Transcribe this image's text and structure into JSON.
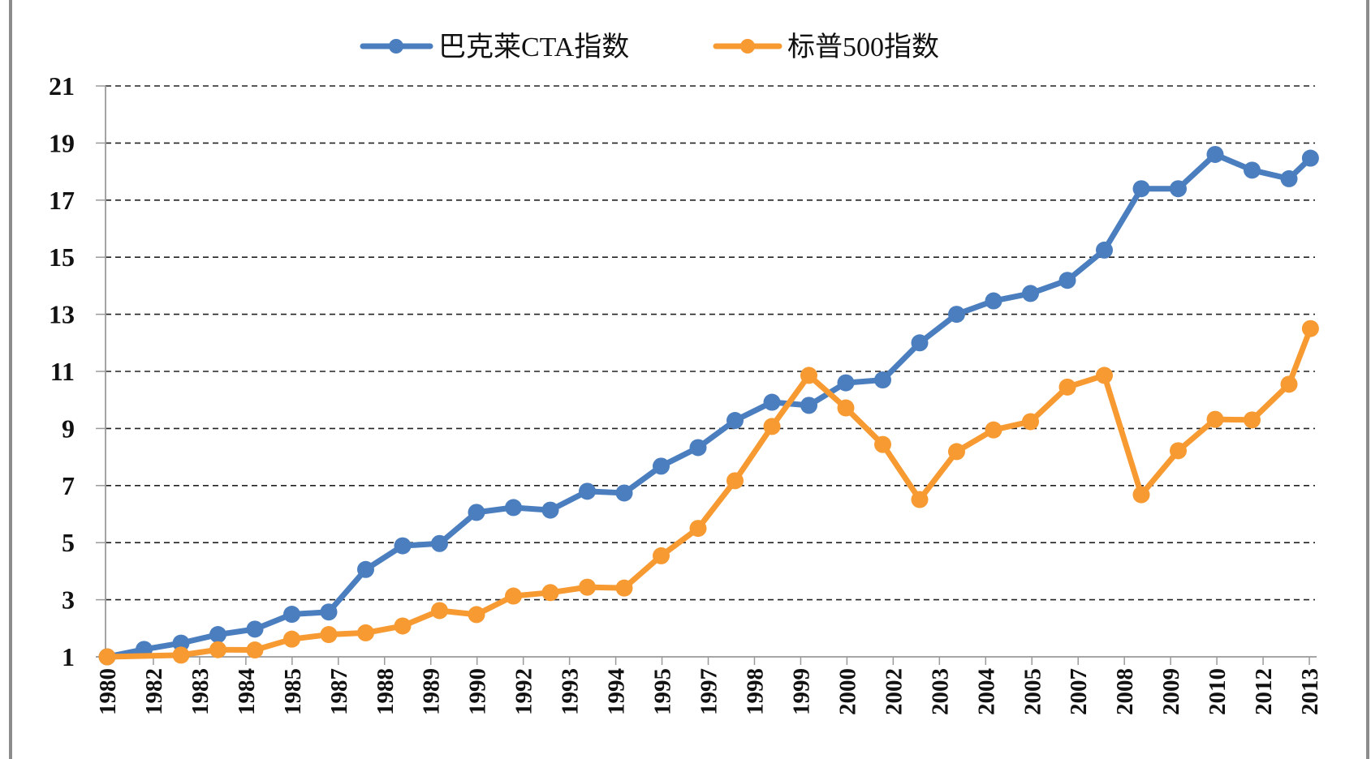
{
  "chart_data": {
    "type": "line",
    "title": "",
    "xlabel": "",
    "ylabel": "",
    "ylim": [
      1,
      21
    ],
    "yticks": [
      1,
      3,
      5,
      7,
      9,
      11,
      13,
      15,
      17,
      19,
      21
    ],
    "grid": "horizontal dashed",
    "legend_position": "top-center",
    "x_tick_labels": [
      "1980",
      "1982",
      "1983",
      "1984",
      "1985",
      "1987",
      "1988",
      "1989",
      "1990",
      "1992",
      "1993",
      "1994",
      "1995",
      "1997",
      "1998",
      "1999",
      "2000",
      "2002",
      "2003",
      "2004",
      "2005",
      "2007",
      "2008",
      "2009",
      "2010",
      "2012",
      "2013"
    ],
    "x_point_positions": [
      0,
      1,
      2,
      3,
      4,
      5,
      6,
      7,
      8,
      9,
      10,
      11,
      12,
      13,
      14,
      15,
      16,
      17,
      18,
      19,
      20,
      21,
      22,
      23,
      24,
      25,
      26,
      27,
      28,
      29,
      30,
      31,
      32,
      32.58
    ],
    "x_range": [
      0,
      32.55
    ],
    "series": [
      {
        "name": "巴克莱CTA指数",
        "color": "#4a7ebf",
        "values": [
          1.0,
          1.26,
          1.48,
          1.78,
          1.97,
          2.49,
          2.57,
          4.06,
          4.89,
          4.97,
          6.06,
          6.23,
          6.14,
          6.8,
          6.74,
          7.68,
          8.33,
          9.28,
          9.92,
          9.81,
          10.6,
          10.7,
          12.0,
          13.0,
          13.47,
          13.73,
          14.19,
          15.25,
          17.4,
          17.4,
          18.6,
          18.05,
          17.75,
          18.47
        ]
      },
      {
        "name": "标普500指数",
        "color": "#f79a32",
        "values": [
          1.0,
          null,
          1.06,
          1.25,
          1.24,
          1.62,
          1.78,
          1.84,
          2.08,
          2.62,
          2.48,
          3.13,
          3.25,
          3.44,
          3.41,
          4.54,
          5.5,
          7.17,
          9.07,
          10.86,
          9.72,
          8.44,
          6.51,
          8.19,
          8.95,
          9.24,
          10.45,
          10.86,
          6.68,
          8.22,
          9.32,
          9.3,
          10.55,
          12.5
        ]
      }
    ]
  }
}
